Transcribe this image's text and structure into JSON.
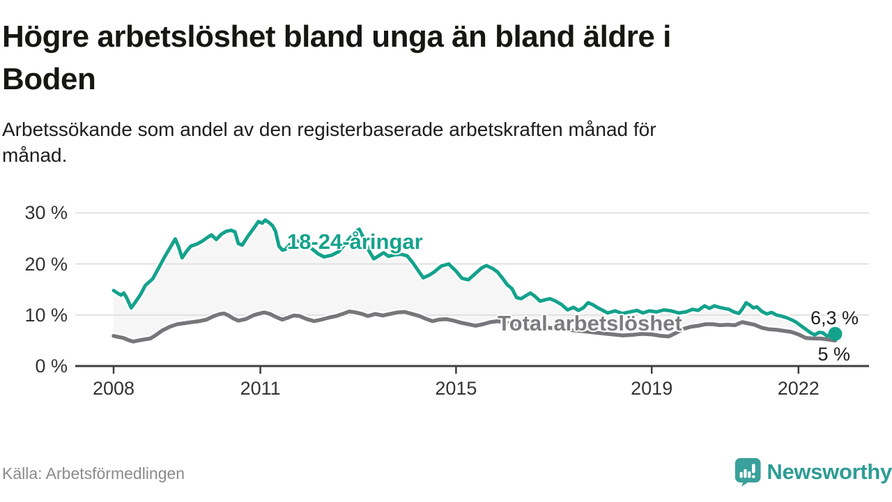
{
  "header": {
    "title": "Högre arbetslöshet bland unga än bland äldre i Boden",
    "title_lines": [
      "Högre arbetslöshet bland unga än bland äldre i",
      "Boden"
    ],
    "subtitle": "Arbetssökande som andel av den registerbaserade arbetskraften månad för månad.",
    "subtitle_lines": [
      "Arbetssökande som andel av den registerbaserade arbetskraften månad för",
      "månad."
    ]
  },
  "chart_data": {
    "type": "line",
    "title": "Högre arbetslöshet bland unga än bland äldre i Boden",
    "subtitle": "Arbetssökande som andel av den registerbaserade arbetskraften månad för månad.",
    "unit": "%",
    "x_axis": {
      "label": "",
      "tick_values": [
        2008,
        2011,
        2015,
        2019,
        2022
      ],
      "tick_labels": [
        "2008",
        "2011",
        "2015",
        "2019",
        "2022"
      ],
      "range": [
        2007.2,
        2023.4
      ]
    },
    "y_axis": {
      "label": "",
      "tick_values": [
        0,
        10,
        20,
        30
      ],
      "tick_labels": [
        "0 %",
        "10 %",
        "20 %",
        "30 %"
      ],
      "range": [
        0,
        32
      ],
      "grid": true
    },
    "legend_position": "inline-labels",
    "band_fill_between_series": "#f6f6f6",
    "colors": {
      "youth": "#14a28c",
      "total": "#77777b",
      "grid": "#dcdcdc",
      "axis": "#3e3e3e"
    },
    "series": [
      {
        "name": "18-24-åringar",
        "color": "#14a28c",
        "end_label": "6,3 %",
        "end_value": 6.3,
        "end_dot": true,
        "points": [
          [
            2008.0,
            14.8
          ],
          [
            2008.08,
            14.3
          ],
          [
            2008.15,
            13.9
          ],
          [
            2008.21,
            14.3
          ],
          [
            2008.27,
            13.3
          ],
          [
            2008.36,
            11.4
          ],
          [
            2008.45,
            12.6
          ],
          [
            2008.55,
            14.0
          ],
          [
            2008.65,
            15.8
          ],
          [
            2008.8,
            17.1
          ],
          [
            2008.92,
            19.2
          ],
          [
            2009.05,
            21.5
          ],
          [
            2009.15,
            23.1
          ],
          [
            2009.26,
            24.9
          ],
          [
            2009.33,
            23.3
          ],
          [
            2009.4,
            21.2
          ],
          [
            2009.5,
            22.6
          ],
          [
            2009.58,
            23.5
          ],
          [
            2009.7,
            23.9
          ],
          [
            2009.8,
            24.4
          ],
          [
            2009.92,
            25.2
          ],
          [
            2010.0,
            25.7
          ],
          [
            2010.1,
            24.8
          ],
          [
            2010.2,
            25.8
          ],
          [
            2010.3,
            26.4
          ],
          [
            2010.4,
            26.6
          ],
          [
            2010.48,
            26.3
          ],
          [
            2010.55,
            24.0
          ],
          [
            2010.63,
            23.7
          ],
          [
            2010.75,
            25.5
          ],
          [
            2010.88,
            27.2
          ],
          [
            2010.96,
            28.3
          ],
          [
            2011.04,
            28.0
          ],
          [
            2011.1,
            28.6
          ],
          [
            2011.18,
            28.1
          ],
          [
            2011.25,
            27.5
          ],
          [
            2011.31,
            26.4
          ],
          [
            2011.38,
            23.5
          ],
          [
            2011.45,
            22.7
          ],
          [
            2011.52,
            22.9
          ],
          [
            2011.6,
            23.8
          ],
          [
            2011.68,
            24.3
          ],
          [
            2011.8,
            24.6
          ],
          [
            2011.92,
            23.9
          ],
          [
            2012.05,
            23.0
          ],
          [
            2012.18,
            22.0
          ],
          [
            2012.3,
            21.4
          ],
          [
            2012.45,
            21.7
          ],
          [
            2012.6,
            22.4
          ],
          [
            2012.75,
            24.1
          ],
          [
            2012.9,
            25.9
          ],
          [
            2013.02,
            26.8
          ],
          [
            2013.12,
            24.9
          ],
          [
            2013.22,
            22.6
          ],
          [
            2013.32,
            21.0
          ],
          [
            2013.42,
            21.6
          ],
          [
            2013.52,
            22.2
          ],
          [
            2013.62,
            21.5
          ],
          [
            2013.75,
            21.8
          ],
          [
            2013.88,
            21.9
          ],
          [
            2014.0,
            21.6
          ],
          [
            2014.12,
            20.2
          ],
          [
            2014.22,
            18.8
          ],
          [
            2014.33,
            17.3
          ],
          [
            2014.45,
            17.8
          ],
          [
            2014.55,
            18.4
          ],
          [
            2014.7,
            19.6
          ],
          [
            2014.85,
            20.0
          ],
          [
            2015.0,
            18.6
          ],
          [
            2015.12,
            17.2
          ],
          [
            2015.25,
            16.9
          ],
          [
            2015.38,
            18.0
          ],
          [
            2015.52,
            19.2
          ],
          [
            2015.62,
            19.7
          ],
          [
            2015.75,
            19.1
          ],
          [
            2015.85,
            18.4
          ],
          [
            2015.95,
            17.2
          ],
          [
            2016.05,
            15.9
          ],
          [
            2016.14,
            15.2
          ],
          [
            2016.24,
            13.4
          ],
          [
            2016.33,
            13.2
          ],
          [
            2016.43,
            13.8
          ],
          [
            2016.52,
            14.3
          ],
          [
            2016.62,
            13.6
          ],
          [
            2016.72,
            12.7
          ],
          [
            2016.83,
            13.0
          ],
          [
            2016.92,
            13.2
          ],
          [
            2017.02,
            12.8
          ],
          [
            2017.15,
            12.1
          ],
          [
            2017.28,
            11.0
          ],
          [
            2017.4,
            11.5
          ],
          [
            2017.5,
            10.9
          ],
          [
            2017.6,
            11.4
          ],
          [
            2017.7,
            12.4
          ],
          [
            2017.8,
            12.0
          ],
          [
            2017.9,
            11.4
          ],
          [
            2018.0,
            10.9
          ],
          [
            2018.1,
            10.4
          ],
          [
            2018.25,
            10.8
          ],
          [
            2018.4,
            10.3
          ],
          [
            2018.55,
            10.6
          ],
          [
            2018.7,
            10.9
          ],
          [
            2018.82,
            10.4
          ],
          [
            2018.95,
            10.8
          ],
          [
            2019.1,
            10.6
          ],
          [
            2019.25,
            11.0
          ],
          [
            2019.4,
            10.8
          ],
          [
            2019.55,
            10.4
          ],
          [
            2019.7,
            10.6
          ],
          [
            2019.83,
            11.1
          ],
          [
            2019.95,
            10.9
          ],
          [
            2020.08,
            11.8
          ],
          [
            2020.18,
            11.3
          ],
          [
            2020.28,
            11.8
          ],
          [
            2020.38,
            11.5
          ],
          [
            2020.48,
            11.3
          ],
          [
            2020.58,
            11.1
          ],
          [
            2020.68,
            10.6
          ],
          [
            2020.78,
            10.3
          ],
          [
            2020.86,
            11.3
          ],
          [
            2020.93,
            12.4
          ],
          [
            2021.0,
            12.0
          ],
          [
            2021.08,
            11.4
          ],
          [
            2021.15,
            11.6
          ],
          [
            2021.25,
            10.7
          ],
          [
            2021.35,
            10.2
          ],
          [
            2021.45,
            10.5
          ],
          [
            2021.55,
            10.0
          ],
          [
            2021.65,
            9.8
          ],
          [
            2021.75,
            9.5
          ],
          [
            2021.85,
            9.1
          ],
          [
            2021.95,
            8.6
          ],
          [
            2022.05,
            7.9
          ],
          [
            2022.15,
            7.2
          ],
          [
            2022.25,
            6.5
          ],
          [
            2022.33,
            6.1
          ],
          [
            2022.42,
            6.6
          ],
          [
            2022.5,
            6.5
          ],
          [
            2022.58,
            5.9
          ],
          [
            2022.67,
            6.1
          ],
          [
            2022.75,
            6.3
          ]
        ]
      },
      {
        "name": "Total arbetslöshet",
        "color": "#77777b",
        "end_label": "5 %",
        "end_value": 5.0,
        "end_dot": false,
        "points": [
          [
            2008.0,
            5.9
          ],
          [
            2008.1,
            5.7
          ],
          [
            2008.2,
            5.5
          ],
          [
            2008.3,
            5.1
          ],
          [
            2008.4,
            4.8
          ],
          [
            2008.5,
            5.0
          ],
          [
            2008.62,
            5.2
          ],
          [
            2008.75,
            5.4
          ],
          [
            2008.87,
            6.1
          ],
          [
            2009.0,
            7.0
          ],
          [
            2009.15,
            7.7
          ],
          [
            2009.3,
            8.2
          ],
          [
            2009.45,
            8.4
          ],
          [
            2009.6,
            8.6
          ],
          [
            2009.75,
            8.8
          ],
          [
            2009.9,
            9.1
          ],
          [
            2010.05,
            9.8
          ],
          [
            2010.18,
            10.2
          ],
          [
            2010.26,
            10.3
          ],
          [
            2010.35,
            9.9
          ],
          [
            2010.45,
            9.3
          ],
          [
            2010.55,
            8.9
          ],
          [
            2010.7,
            9.2
          ],
          [
            2010.85,
            9.9
          ],
          [
            2010.95,
            10.2
          ],
          [
            2011.08,
            10.5
          ],
          [
            2011.2,
            10.2
          ],
          [
            2011.32,
            9.6
          ],
          [
            2011.45,
            9.1
          ],
          [
            2011.57,
            9.5
          ],
          [
            2011.68,
            9.9
          ],
          [
            2011.8,
            9.8
          ],
          [
            2011.95,
            9.2
          ],
          [
            2012.1,
            8.8
          ],
          [
            2012.25,
            9.1
          ],
          [
            2012.4,
            9.5
          ],
          [
            2012.55,
            9.8
          ],
          [
            2012.68,
            10.2
          ],
          [
            2012.82,
            10.7
          ],
          [
            2012.95,
            10.5
          ],
          [
            2013.08,
            10.2
          ],
          [
            2013.2,
            9.8
          ],
          [
            2013.35,
            10.2
          ],
          [
            2013.5,
            9.9
          ],
          [
            2013.65,
            10.2
          ],
          [
            2013.8,
            10.5
          ],
          [
            2013.95,
            10.6
          ],
          [
            2014.1,
            10.2
          ],
          [
            2014.25,
            9.8
          ],
          [
            2014.4,
            9.2
          ],
          [
            2014.52,
            8.8
          ],
          [
            2014.65,
            9.1
          ],
          [
            2014.8,
            9.2
          ],
          [
            2014.95,
            8.9
          ],
          [
            2015.1,
            8.5
          ],
          [
            2015.25,
            8.2
          ],
          [
            2015.4,
            7.9
          ],
          [
            2015.55,
            8.2
          ],
          [
            2015.7,
            8.6
          ],
          [
            2015.85,
            8.8
          ],
          [
            2016.0,
            8.5
          ],
          [
            2016.2,
            8.2
          ],
          [
            2016.4,
            8.0
          ],
          [
            2016.6,
            7.8
          ],
          [
            2016.8,
            7.6
          ],
          [
            2017.0,
            7.4
          ],
          [
            2017.2,
            7.2
          ],
          [
            2017.4,
            7.0
          ],
          [
            2017.6,
            6.8
          ],
          [
            2017.8,
            6.6
          ],
          [
            2018.0,
            6.4
          ],
          [
            2018.2,
            6.2
          ],
          [
            2018.4,
            6.0
          ],
          [
            2018.6,
            6.1
          ],
          [
            2018.8,
            6.3
          ],
          [
            2019.0,
            6.2
          ],
          [
            2019.2,
            5.9
          ],
          [
            2019.35,
            5.8
          ],
          [
            2019.5,
            6.5
          ],
          [
            2019.65,
            7.3
          ],
          [
            2019.8,
            7.7
          ],
          [
            2019.95,
            7.9
          ],
          [
            2020.1,
            8.2
          ],
          [
            2020.25,
            8.2
          ],
          [
            2020.4,
            8.0
          ],
          [
            2020.55,
            8.1
          ],
          [
            2020.7,
            8.0
          ],
          [
            2020.85,
            8.6
          ],
          [
            2020.95,
            8.4
          ],
          [
            2021.1,
            8.1
          ],
          [
            2021.25,
            7.5
          ],
          [
            2021.4,
            7.2
          ],
          [
            2021.55,
            7.1
          ],
          [
            2021.7,
            6.9
          ],
          [
            2021.85,
            6.7
          ],
          [
            2022.0,
            6.2
          ],
          [
            2022.15,
            5.5
          ],
          [
            2022.3,
            5.4
          ],
          [
            2022.45,
            5.4
          ],
          [
            2022.6,
            5.2
          ],
          [
            2022.75,
            5.0
          ]
        ]
      }
    ]
  },
  "footer": {
    "source": "Källa: Arbetsförmedlingen",
    "brand": "Newsworthy",
    "brand_color": "#2d9c95"
  }
}
